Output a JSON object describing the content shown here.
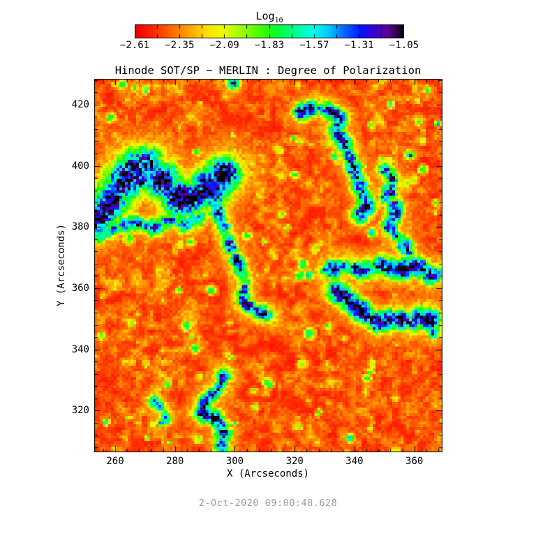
{
  "chart_data": {
    "type": "heatmap",
    "title": "Hinode SOT/SP − MERLIN : Degree of Polarization",
    "xlabel": "X (Arcseconds)",
    "ylabel": "Y (Arcseconds)",
    "timestamp": "2-Oct-2020 09:00:48.628",
    "x_range": [
      253.0,
      369.4
    ],
    "y_range": [
      306.4,
      428.4
    ],
    "x_ticks": [
      260,
      280,
      300,
      320,
      340,
      360
    ],
    "y_ticks": [
      320,
      340,
      360,
      380,
      400,
      420
    ],
    "minor_tick_step": 4,
    "grid": false,
    "colorbar": {
      "label": "Log",
      "label_sub": "10",
      "ticks": [
        -2.61,
        -2.35,
        -2.09,
        -1.83,
        -1.57,
        -1.31,
        -1.05
      ],
      "minor_step": 0.13,
      "value_range": [
        -2.61,
        -1.05
      ],
      "position": "top"
    },
    "colormap_stops": [
      [
        0.0,
        "#e80000"
      ],
      [
        0.06,
        "#ff1e00"
      ],
      [
        0.13,
        "#ff6400"
      ],
      [
        0.2,
        "#ffa000"
      ],
      [
        0.27,
        "#ffe000"
      ],
      [
        0.33,
        "#e8ff00"
      ],
      [
        0.4,
        "#96ff00"
      ],
      [
        0.47,
        "#3cff00"
      ],
      [
        0.53,
        "#00ff32"
      ],
      [
        0.6,
        "#00ff96"
      ],
      [
        0.66,
        "#00ffe6"
      ],
      [
        0.72,
        "#00c8ff"
      ],
      [
        0.78,
        "#0064ff"
      ],
      [
        0.84,
        "#0014ff"
      ],
      [
        0.89,
        "#3c00d2"
      ],
      [
        0.94,
        "#5a0096"
      ],
      [
        0.98,
        "#28003c"
      ],
      [
        1.0,
        "#000000"
      ]
    ],
    "background_log10_range": [
      -2.61,
      -2.2
    ],
    "network_chains": [
      {
        "name": "nw-cluster-spine",
        "width_arcsec": 4.2,
        "peak_log10": -1.12,
        "points": [
          [
            253,
            383
          ],
          [
            257,
            387
          ],
          [
            261,
            393
          ],
          [
            265,
            399
          ],
          [
            270,
            401
          ],
          [
            274,
            397
          ],
          [
            279,
            391
          ],
          [
            284,
            389
          ],
          [
            289,
            391
          ],
          [
            294,
            396
          ],
          [
            297,
            399
          ]
        ]
      },
      {
        "name": "nw-cluster-core",
        "width_arcsec": 2.4,
        "peak_log10": -1.03,
        "points": [
          [
            280,
            392
          ],
          [
            284,
            389
          ],
          [
            288,
            392
          ],
          [
            291,
            395
          ]
        ]
      },
      {
        "name": "nw-cluster-core2",
        "width_arcsec": 2.0,
        "peak_log10": -1.05,
        "points": [
          [
            263,
            399
          ],
          [
            266,
            397
          ],
          [
            269,
            395
          ]
        ]
      },
      {
        "name": "nw-lower-arm",
        "width_arcsec": 2.0,
        "peak_log10": -1.45,
        "points": [
          [
            254,
            377
          ],
          [
            260,
            380
          ],
          [
            266,
            382
          ],
          [
            272,
            380
          ],
          [
            278,
            383
          ],
          [
            284,
            381
          ],
          [
            289,
            384
          ]
        ]
      },
      {
        "name": "central-tail",
        "width_arcsec": 1.8,
        "peak_log10": -1.25,
        "points": [
          [
            293,
            387
          ],
          [
            296,
            380
          ],
          [
            298,
            374
          ],
          [
            301,
            368
          ],
          [
            303,
            362
          ],
          [
            302,
            356
          ],
          [
            307,
            353
          ],
          [
            312,
            351
          ]
        ]
      },
      {
        "name": "north-arc",
        "width_arcsec": 1.9,
        "peak_log10": -1.22,
        "points": [
          [
            322,
            418
          ],
          [
            327,
            420
          ],
          [
            332,
            418
          ],
          [
            335,
            416
          ],
          [
            333,
            412
          ],
          [
            336,
            408
          ],
          [
            338,
            403
          ],
          [
            340,
            398
          ],
          [
            342,
            392
          ],
          [
            344,
            387
          ],
          [
            341,
            384
          ]
        ]
      },
      {
        "name": "east-chain",
        "width_arcsec": 1.8,
        "peak_log10": -1.28,
        "points": [
          [
            350,
            399
          ],
          [
            353,
            395
          ],
          [
            350,
            390
          ],
          [
            354,
            386
          ],
          [
            351,
            381
          ],
          [
            355,
            376
          ],
          [
            358,
            372
          ]
        ]
      },
      {
        "name": "east-band-upper",
        "width_arcsec": 2.2,
        "peak_log10": -1.18,
        "points": [
          [
            330,
            366
          ],
          [
            336,
            368
          ],
          [
            342,
            366
          ],
          [
            348,
            368
          ],
          [
            354,
            366
          ],
          [
            360,
            368
          ],
          [
            366,
            364
          ],
          [
            369,
            366
          ]
        ]
      },
      {
        "name": "east-band-lower",
        "width_arcsec": 2.3,
        "peak_log10": -1.1,
        "points": [
          [
            333,
            360
          ],
          [
            338,
            356
          ],
          [
            343,
            352
          ],
          [
            348,
            349
          ],
          [
            353,
            351
          ],
          [
            358,
            349
          ],
          [
            363,
            352
          ],
          [
            367,
            347
          ]
        ]
      },
      {
        "name": "south-chain",
        "width_arcsec": 1.9,
        "peak_log10": -1.2,
        "points": [
          [
            296,
            332
          ],
          [
            294,
            327
          ],
          [
            290,
            324
          ],
          [
            288,
            320
          ],
          [
            293,
            318
          ],
          [
            296,
            314
          ],
          [
            295,
            310
          ],
          [
            296,
            306
          ]
        ]
      },
      {
        "name": "south-cluster-west",
        "width_arcsec": 1.5,
        "peak_log10": -1.5,
        "points": [
          [
            272,
            324
          ],
          [
            275,
            321
          ],
          [
            277,
            318
          ],
          [
            274,
            316
          ]
        ]
      }
    ],
    "blobs": [
      {
        "x": 299,
        "y": 427.5,
        "r_arcsec": 1.8,
        "peak_log10": -1.25
      },
      {
        "x": 262,
        "y": 427,
        "r_arcsec": 1.2,
        "peak_log10": -1.6
      },
      {
        "x": 266,
        "y": 426,
        "r_arcsec": 0.9,
        "peak_log10": -1.7
      },
      {
        "x": 361,
        "y": 415,
        "r_arcsec": 1.1,
        "peak_log10": -1.75
      },
      {
        "x": 358,
        "y": 404,
        "r_arcsec": 1.2,
        "peak_log10": -1.45
      },
      {
        "x": 366,
        "y": 346,
        "r_arcsec": 1.6,
        "peak_log10": -1.3
      },
      {
        "x": 255,
        "y": 345,
        "r_arcsec": 1.0,
        "peak_log10": -1.7
      },
      {
        "x": 265,
        "y": 349,
        "r_arcsec": 0.9,
        "peak_log10": -1.75
      },
      {
        "x": 364,
        "y": 425,
        "r_arcsec": 0.9,
        "peak_log10": -1.8
      }
    ],
    "speckles": {
      "count": 150,
      "peak_log10_range": [
        -2.2,
        -1.6
      ]
    }
  }
}
